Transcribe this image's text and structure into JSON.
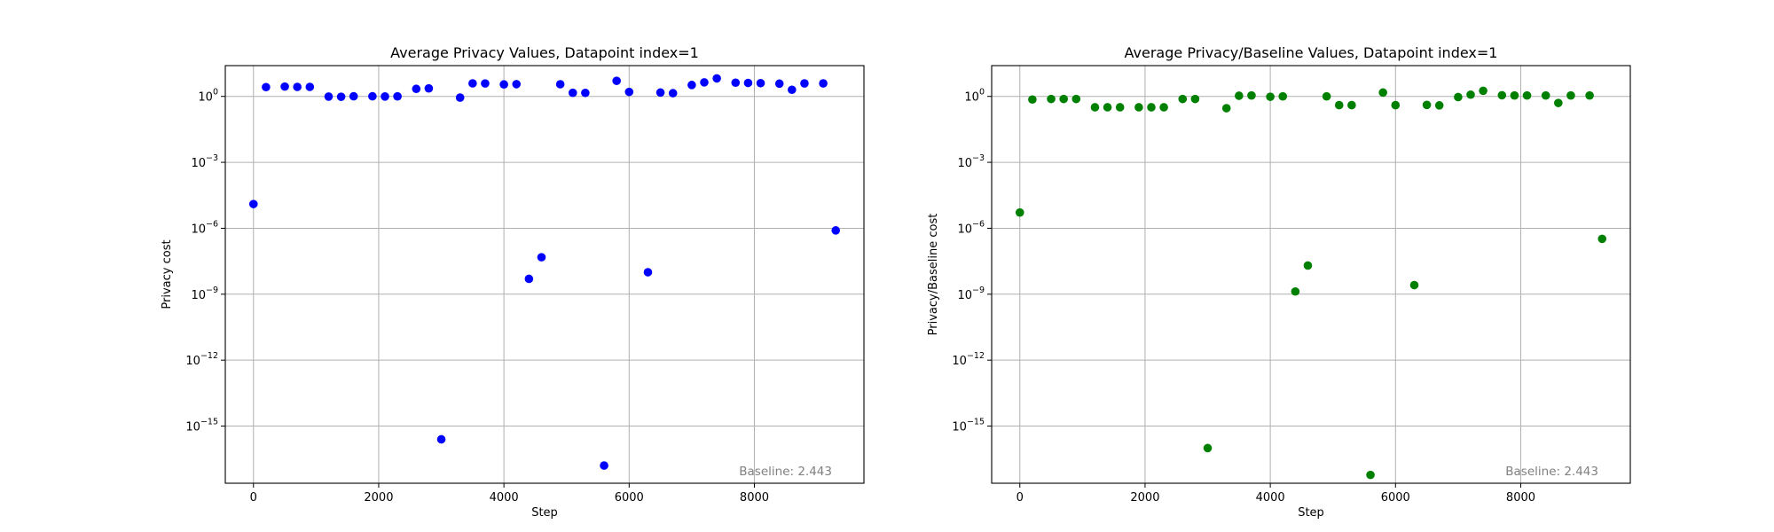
{
  "chart_data": [
    {
      "type": "scatter",
      "title": "Average Privacy Values, Datapoint index=1",
      "xlabel": "Step",
      "ylabel": "Privacy cost",
      "xlim": [
        -450,
        9750
      ],
      "ylim_log10": [
        -17.6,
        1.4
      ],
      "yscale": "log",
      "grid": true,
      "color": "#0000ff",
      "x_ticks": [
        0,
        2000,
        4000,
        6000,
        8000
      ],
      "y_ticks_exp": [
        0,
        -3,
        -6,
        -9,
        -12,
        -15
      ],
      "annotation": "Baseline: 2.443",
      "points": [
        {
          "x": 0,
          "y": 1.26e-05
        },
        {
          "x": 200,
          "y": 2.64
        },
        {
          "x": 500,
          "y": 2.8
        },
        {
          "x": 700,
          "y": 2.7
        },
        {
          "x": 900,
          "y": 2.7
        },
        {
          "x": 1200,
          "y": 0.98
        },
        {
          "x": 1400,
          "y": 0.96
        },
        {
          "x": 1600,
          "y": 1.01
        },
        {
          "x": 1900,
          "y": 1.01
        },
        {
          "x": 2100,
          "y": 0.99
        },
        {
          "x": 2300,
          "y": 1.0
        },
        {
          "x": 2600,
          "y": 2.2
        },
        {
          "x": 2800,
          "y": 2.31
        },
        {
          "x": 3000,
          "y": 2.5e-16
        },
        {
          "x": 3300,
          "y": 0.88
        },
        {
          "x": 3500,
          "y": 3.92
        },
        {
          "x": 3700,
          "y": 3.87
        },
        {
          "x": 4000,
          "y": 3.5
        },
        {
          "x": 4200,
          "y": 3.6
        },
        {
          "x": 4400,
          "y": 5e-09
        },
        {
          "x": 4600,
          "y": 4.8e-08
        },
        {
          "x": 4900,
          "y": 3.57
        },
        {
          "x": 5100,
          "y": 1.45
        },
        {
          "x": 5300,
          "y": 1.44
        },
        {
          "x": 5600,
          "y": 1.6e-17
        },
        {
          "x": 5800,
          "y": 5.1
        },
        {
          "x": 6000,
          "y": 1.6
        },
        {
          "x": 6300,
          "y": 1e-08
        },
        {
          "x": 6500,
          "y": 1.5
        },
        {
          "x": 6700,
          "y": 1.4
        },
        {
          "x": 7000,
          "y": 3.3
        },
        {
          "x": 7200,
          "y": 4.35
        },
        {
          "x": 7400,
          "y": 6.6
        },
        {
          "x": 7700,
          "y": 4.2
        },
        {
          "x": 7900,
          "y": 4.1
        },
        {
          "x": 8100,
          "y": 4.0
        },
        {
          "x": 8400,
          "y": 3.8
        },
        {
          "x": 8600,
          "y": 2.0
        },
        {
          "x": 8800,
          "y": 3.9
        },
        {
          "x": 9100,
          "y": 3.9
        },
        {
          "x": 9300,
          "y": 8e-07
        }
      ]
    },
    {
      "type": "scatter",
      "title": "Average Privacy/Baseline Values, Datapoint index=1",
      "xlabel": "Step",
      "ylabel": "Privacy/Baseline cost",
      "xlim": [
        -450,
        9750
      ],
      "ylim_log10": [
        -17.6,
        1.4
      ],
      "yscale": "log",
      "grid": true,
      "color": "#008000",
      "x_ticks": [
        0,
        2000,
        4000,
        6000,
        8000
      ],
      "y_ticks_exp": [
        0,
        -3,
        -6,
        -9,
        -12,
        -15
      ],
      "annotation": "Baseline: 2.443",
      "points": [
        {
          "x": 0,
          "y": 5.2e-06
        },
        {
          "x": 200,
          "y": 0.72
        },
        {
          "x": 500,
          "y": 0.76
        },
        {
          "x": 700,
          "y": 0.76
        },
        {
          "x": 900,
          "y": 0.76
        },
        {
          "x": 1200,
          "y": 0.32
        },
        {
          "x": 1400,
          "y": 0.32
        },
        {
          "x": 1600,
          "y": 0.32
        },
        {
          "x": 1900,
          "y": 0.32
        },
        {
          "x": 2100,
          "y": 0.32
        },
        {
          "x": 2300,
          "y": 0.32
        },
        {
          "x": 2600,
          "y": 0.76
        },
        {
          "x": 2800,
          "y": 0.76
        },
        {
          "x": 3000,
          "y": 1e-16
        },
        {
          "x": 3300,
          "y": 0.29
        },
        {
          "x": 3500,
          "y": 1.07
        },
        {
          "x": 3700,
          "y": 1.1
        },
        {
          "x": 4000,
          "y": 0.96
        },
        {
          "x": 4200,
          "y": 1.0
        },
        {
          "x": 4400,
          "y": 1.33e-09
        },
        {
          "x": 4600,
          "y": 2.02e-08
        },
        {
          "x": 4900,
          "y": 1.0
        },
        {
          "x": 5100,
          "y": 0.4
        },
        {
          "x": 5300,
          "y": 0.4
        },
        {
          "x": 5600,
          "y": 6e-18
        },
        {
          "x": 5800,
          "y": 1.5
        },
        {
          "x": 6000,
          "y": 0.4
        },
        {
          "x": 6300,
          "y": 2.6e-09
        },
        {
          "x": 6500,
          "y": 0.41
        },
        {
          "x": 6700,
          "y": 0.39
        },
        {
          "x": 7000,
          "y": 0.93
        },
        {
          "x": 7200,
          "y": 1.2
        },
        {
          "x": 7400,
          "y": 1.8
        },
        {
          "x": 7700,
          "y": 1.13
        },
        {
          "x": 7900,
          "y": 1.1
        },
        {
          "x": 8100,
          "y": 1.1
        },
        {
          "x": 8400,
          "y": 1.1
        },
        {
          "x": 8600,
          "y": 0.5
        },
        {
          "x": 8800,
          "y": 1.1
        },
        {
          "x": 9100,
          "y": 1.1
        },
        {
          "x": 9300,
          "y": 3.3e-07
        }
      ]
    }
  ]
}
